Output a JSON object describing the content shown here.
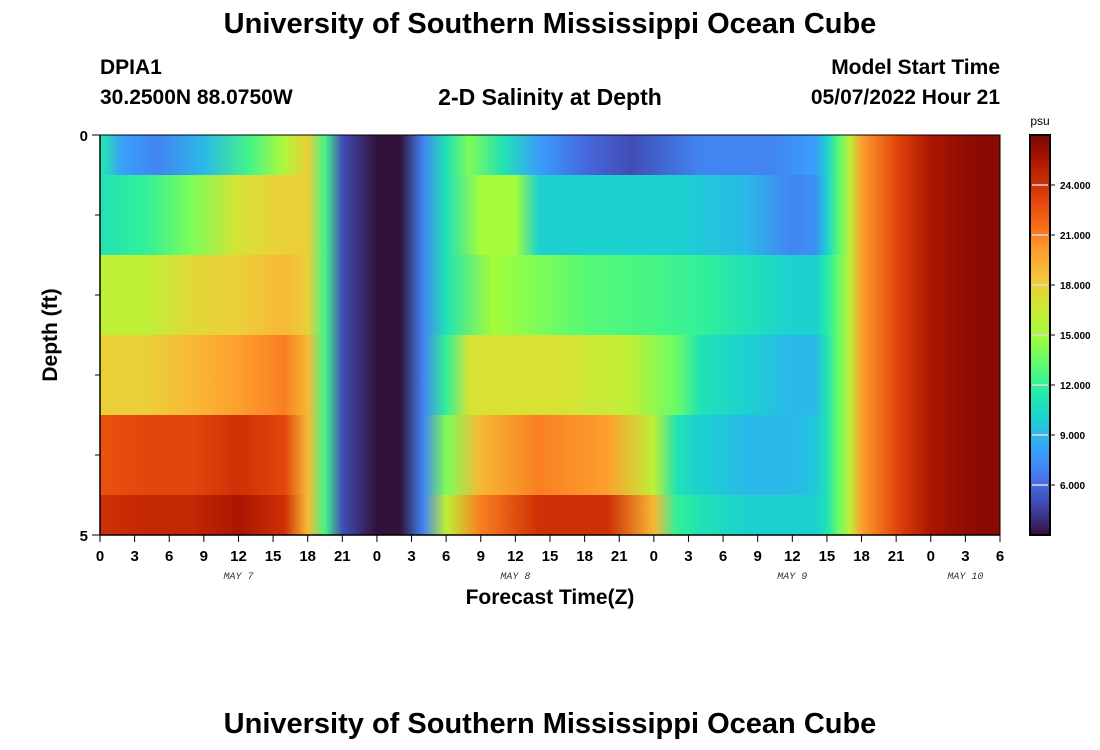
{
  "header": {
    "title": "University of Southern Mississippi Ocean Cube",
    "station": "DPIA1",
    "coords": "30.2500N  88.0750W",
    "subtitle": "2-D Salinity at Depth",
    "model_start_label": "Model Start Time",
    "model_start_value": "05/07/2022 Hour 21"
  },
  "footer": {
    "title": "University of Southern Mississippi Ocean Cube"
  },
  "chart_data": {
    "type": "heatmap",
    "title": "2-D Salinity at Depth",
    "xlabel": "Forecast Time(Z)",
    "ylabel": "Depth (ft)",
    "colorbar_unit": "psu",
    "colorbar_ticks": [
      "24.000",
      "21.000",
      "18.000",
      "15.000",
      "12.000",
      "9.000",
      "6.000"
    ],
    "colorbar_tick_values": [
      24,
      21,
      18,
      15,
      12,
      9,
      6
    ],
    "colorbar_range": [
      3,
      27
    ],
    "x_tick_labels": [
      "0",
      "3",
      "6",
      "9",
      "12",
      "15",
      "18",
      "21",
      "0",
      "3",
      "6",
      "9",
      "12",
      "15",
      "18",
      "21",
      "0",
      "3",
      "6",
      "9",
      "12",
      "15",
      "18",
      "21",
      "0",
      "3",
      "6"
    ],
    "x_range_hours": [
      0,
      78
    ],
    "date_labels": [
      {
        "label": "MAY 7",
        "hour": 12
      },
      {
        "label": "MAY 8",
        "hour": 36
      },
      {
        "label": "MAY 9",
        "hour": 60
      },
      {
        "label": "MAY 10",
        "hour": 75
      }
    ],
    "y_tick_labels": [
      "0",
      "5"
    ],
    "y_range": [
      0,
      5
    ],
    "layers": [
      {
        "depth": [
          0.0,
          0.5
        ],
        "t": [
          0,
          2,
          5,
          9,
          13,
          16,
          18,
          19.5,
          21,
          24,
          26,
          28,
          30,
          32,
          35,
          38,
          42,
          46,
          52,
          58,
          62,
          63,
          64,
          65,
          66,
          69,
          72,
          76,
          78
        ],
        "v": [
          11.5,
          8,
          7,
          9,
          12.5,
          15.5,
          18,
          12.5,
          5,
          3,
          3,
          7,
          11,
          14,
          11,
          8,
          6,
          5,
          7,
          7,
          8,
          10,
          13,
          16,
          20,
          23,
          25.5,
          26.5,
          26.5
        ]
      },
      {
        "depth": [
          0.5,
          1.5
        ],
        "t": [
          0,
          4,
          8,
          12,
          16,
          18,
          19.5,
          21,
          24,
          26,
          28,
          30,
          33,
          36,
          38,
          44,
          50,
          56,
          60,
          62,
          63,
          64,
          65,
          66,
          69,
          72,
          76,
          78
        ],
        "v": [
          11,
          12,
          14,
          17,
          18,
          18,
          12.5,
          5,
          3,
          3,
          7,
          11,
          15,
          15,
          10,
          10,
          10,
          9,
          7,
          7.5,
          10,
          13,
          16,
          20,
          23,
          25.5,
          26.5,
          26.5
        ]
      },
      {
        "depth": [
          1.5,
          2.5
        ],
        "t": [
          0,
          4,
          8,
          12,
          16,
          18,
          19.5,
          21,
          24,
          26,
          28,
          30,
          34,
          38,
          42,
          48,
          52,
          56,
          60,
          62,
          63,
          64,
          65,
          66,
          69,
          72,
          76,
          78
        ],
        "v": [
          16,
          16,
          17.5,
          18,
          19,
          18,
          12.5,
          5,
          3,
          3,
          7,
          11,
          15,
          14,
          13,
          12.5,
          12,
          11,
          10,
          10,
          11.5,
          13.5,
          16,
          20,
          23,
          25.5,
          26.5,
          26.5
        ]
      },
      {
        "depth": [
          2.5,
          3.5
        ],
        "t": [
          0,
          4,
          8,
          12,
          16,
          18,
          19.5,
          21,
          24,
          26,
          28,
          30,
          32,
          36,
          40,
          46,
          50,
          52,
          56,
          60,
          62,
          63,
          64,
          65,
          66,
          69,
          72,
          76,
          78
        ],
        "v": [
          18,
          18,
          19,
          20,
          21,
          19,
          12.5,
          5,
          3,
          3,
          7,
          12,
          17,
          17,
          17,
          16,
          13.5,
          11,
          10,
          9,
          9,
          11,
          13.5,
          16,
          20,
          23,
          25.5,
          26.5,
          26.5
        ]
      },
      {
        "depth": [
          3.5,
          4.5
        ],
        "t": [
          0,
          4,
          8,
          12,
          16,
          18,
          19.5,
          21,
          24,
          26,
          28,
          30,
          33,
          38,
          44,
          48,
          50,
          52,
          56,
          60,
          62,
          63,
          64,
          65,
          66,
          69,
          72,
          76,
          78
        ],
        "v": [
          22.5,
          23,
          23,
          24,
          23,
          19,
          12.5,
          5,
          3,
          3,
          7,
          14,
          19,
          21,
          20,
          16,
          11,
          10,
          9,
          9,
          9.5,
          11,
          13.5,
          16,
          20,
          23,
          25.5,
          26.5,
          26.5
        ]
      },
      {
        "depth": [
          4.5,
          5.0
        ],
        "t": [
          0,
          4,
          8,
          12,
          16,
          18,
          19.5,
          21,
          24,
          26,
          28,
          30,
          33,
          38,
          44,
          48,
          50,
          52,
          56,
          60,
          62,
          63,
          64,
          65,
          66,
          69,
          72,
          76,
          78
        ],
        "v": [
          24,
          24.5,
          24.5,
          25.5,
          24,
          19,
          12.5,
          5,
          3,
          3,
          7,
          16,
          21,
          24,
          24,
          19,
          12,
          11,
          10,
          10,
          10,
          11,
          13.5,
          16,
          20,
          23,
          25.5,
          26.5,
          26.5
        ]
      }
    ]
  },
  "colors": {
    "colormap": [
      "#30123b",
      "#4145ab",
      "#4675ed",
      "#39a2fc",
      "#1bcfd4",
      "#24eca6",
      "#61fc6c",
      "#a4fc3b",
      "#d1e834",
      "#f3c63a",
      "#fe9b2d",
      "#f36315",
      "#d93806",
      "#b11901",
      "#7a0402"
    ]
  }
}
